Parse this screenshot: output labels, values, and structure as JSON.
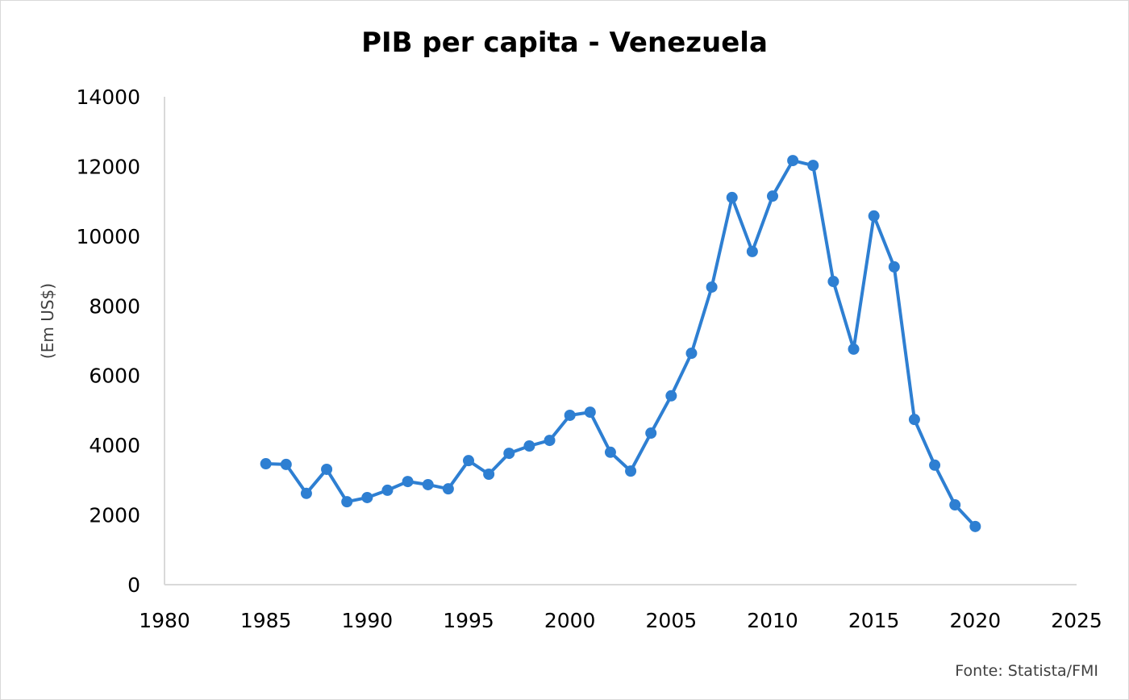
{
  "chart_data": {
    "type": "line",
    "title": "PIB per capita - Venezuela",
    "xlabel": "",
    "ylabel": "(Em US$)",
    "source": "Fonte: Statista/FMI",
    "xlim": [
      1980,
      2025
    ],
    "ylim": [
      0,
      14000
    ],
    "x_ticks": [
      1980,
      1985,
      1990,
      1995,
      2000,
      2005,
      2010,
      2015,
      2020,
      2025
    ],
    "y_ticks": [
      0,
      2000,
      4000,
      6000,
      8000,
      10000,
      12000,
      14000
    ],
    "grid": false,
    "legend": "none",
    "color": "#2e7fd2",
    "series": [
      {
        "x": [
          1985,
          1986,
          1987,
          1988,
          1989,
          1990,
          1991,
          1992,
          1993,
          1994,
          1995,
          1996,
          1997,
          1998,
          1999,
          2000,
          2001,
          2002,
          2003,
          2004,
          2005,
          2006,
          2007,
          2008,
          2009,
          2010,
          2011,
          2012,
          2013,
          2014,
          2015,
          2016,
          2017,
          2018,
          2019,
          2020
        ],
        "values": [
          3470,
          3450,
          2620,
          3310,
          2380,
          2500,
          2710,
          2960,
          2870,
          2750,
          3560,
          3170,
          3770,
          3980,
          4140,
          4860,
          4950,
          3800,
          3260,
          4350,
          5420,
          6640,
          8540,
          11110,
          9560,
          11150,
          12170,
          12030,
          8700,
          6760,
          10580,
          9120,
          4740,
          3430,
          2290,
          1670
        ]
      }
    ]
  }
}
